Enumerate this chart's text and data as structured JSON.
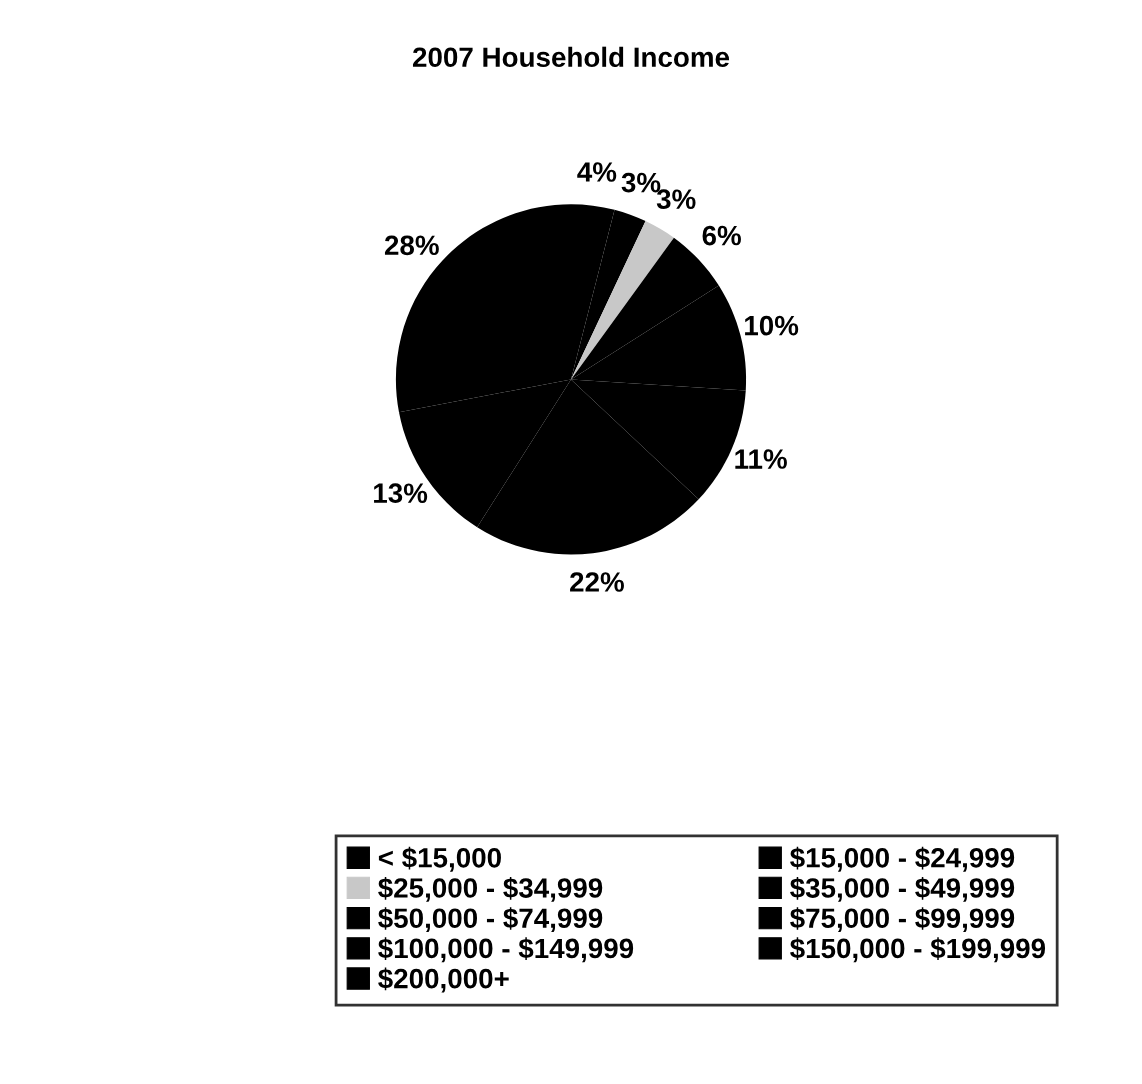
{
  "chart_data": {
    "type": "pie",
    "title": "2007 Household Income",
    "categories": [
      "< $15,000",
      "$15,000 - $24,999",
      "$25,000 - $34,999",
      "$35,000 - $49,999",
      "$50,000 - $74,999",
      "$75,000 - $99,999",
      "$100,000 - $149,999",
      "$150,000 - $199,999",
      "$200,000+"
    ],
    "values": [
      4,
      3,
      3,
      6,
      10,
      11,
      22,
      13,
      28
    ],
    "colors": [
      "#000000",
      "#000000",
      "#c8c8c8",
      "#000000",
      "#000000",
      "#000000",
      "#000000",
      "#000000",
      "#000000"
    ],
    "legend": "bottom",
    "value_labels": [
      "4%",
      "3%",
      "3%",
      "6%",
      "10%",
      "11%",
      "22%",
      "13%",
      "28%"
    ]
  }
}
